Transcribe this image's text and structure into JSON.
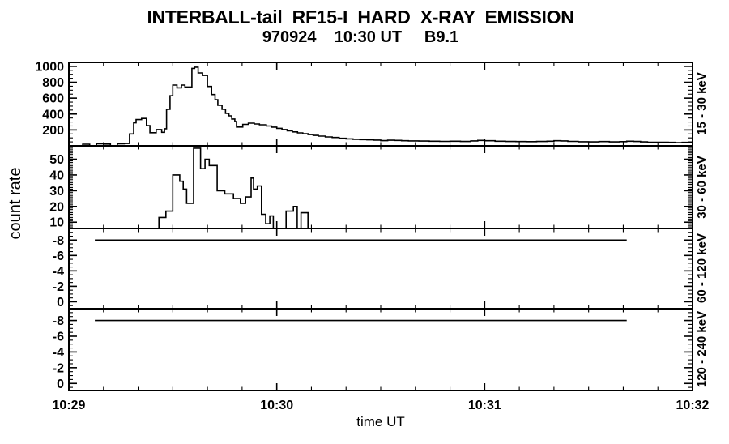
{
  "page": {
    "background": "#ffffff",
    "foreground": "#000000"
  },
  "header": {
    "title": "INTERBALL-tail  RF15-I  HARD  X-RAY  EMISSION",
    "subtitle": "970924    10:30 UT     B9.1"
  },
  "axes": {
    "x_title": "time UT",
    "y_title": "count rate"
  },
  "chart_data": {
    "type": "line",
    "subtype": "step-histogram, 4 vertically stacked panels sharing time axis",
    "title": "INTERBALL-tail  RF15-I  HARD  X-RAY  EMISSION",
    "subtitle": "970924    10:30 UT     B9.1",
    "xlabel": "time UT",
    "ylabel": "count rate",
    "grid": false,
    "x_axis": {
      "range_seconds": [
        0,
        180
      ],
      "major_tick_seconds": [
        0,
        60,
        120,
        180
      ],
      "major_tick_labels": [
        "10:29",
        "10:30",
        "10:31",
        "10:32"
      ],
      "minor_tick_step_seconds": 10
    },
    "panels": [
      {
        "band_label": "15 - 30 keV",
        "y_ticks": [
          200,
          400,
          600,
          800,
          1000
        ],
        "y_range_bottom_top": [
          0,
          1050
        ],
        "y_minor_step": 50,
        "end_t": 180,
        "steps_t_v": [
          [
            0,
            0
          ],
          [
            4,
            20
          ],
          [
            6,
            0
          ],
          [
            8,
            25
          ],
          [
            10,
            22
          ],
          [
            12,
            0
          ],
          [
            14,
            25
          ],
          [
            16,
            30
          ],
          [
            17.5,
            150
          ],
          [
            18.7,
            290
          ],
          [
            19.4,
            330
          ],
          [
            21,
            345
          ],
          [
            22.4,
            255
          ],
          [
            23.4,
            165
          ],
          [
            25.2,
            205
          ],
          [
            26.8,
            170
          ],
          [
            27.6,
            215
          ],
          [
            28.2,
            460
          ],
          [
            29.2,
            630
          ],
          [
            30,
            765
          ],
          [
            31.2,
            730
          ],
          [
            32.5,
            765
          ],
          [
            33.5,
            740
          ],
          [
            35.5,
            975
          ],
          [
            36.3,
            990
          ],
          [
            37.3,
            917
          ],
          [
            38.6,
            886
          ],
          [
            40,
            747
          ],
          [
            41.2,
            645
          ],
          [
            42.2,
            580
          ],
          [
            43,
            510
          ],
          [
            44.2,
            459
          ],
          [
            45.2,
            408
          ],
          [
            46.2,
            377
          ],
          [
            47,
            337
          ],
          [
            47.9,
            306
          ],
          [
            48.4,
            237
          ],
          [
            50.2,
            270
          ],
          [
            51.8,
            285
          ],
          [
            53.5,
            275
          ],
          [
            55,
            265
          ],
          [
            57,
            250
          ],
          [
            58.5,
            235
          ],
          [
            60,
            220
          ],
          [
            61.5,
            205
          ],
          [
            63,
            190
          ],
          [
            64.5,
            175
          ],
          [
            66,
            163
          ],
          [
            67.5,
            152
          ],
          [
            69,
            142
          ],
          [
            70.5,
            132
          ],
          [
            72,
            122
          ],
          [
            74,
            112
          ],
          [
            76,
            105
          ],
          [
            78,
            95
          ],
          [
            80,
            88
          ],
          [
            82,
            82
          ],
          [
            84,
            78
          ],
          [
            86,
            75
          ],
          [
            88,
            72
          ],
          [
            90,
            65
          ],
          [
            92,
            70
          ],
          [
            94,
            68
          ],
          [
            96,
            64
          ],
          [
            98,
            62
          ],
          [
            101,
            60
          ],
          [
            104,
            58
          ],
          [
            107,
            56
          ],
          [
            110,
            58
          ],
          [
            113,
            55
          ],
          [
            116,
            62
          ],
          [
            118,
            68
          ],
          [
            120,
            64
          ],
          [
            123,
            58
          ],
          [
            126,
            55
          ],
          [
            129,
            54
          ],
          [
            132,
            53
          ],
          [
            135,
            55
          ],
          [
            138,
            58
          ],
          [
            140,
            64
          ],
          [
            142,
            62
          ],
          [
            144,
            56
          ],
          [
            147,
            52
          ],
          [
            150,
            50
          ],
          [
            153,
            54
          ],
          [
            156,
            50
          ],
          [
            159,
            53
          ],
          [
            161,
            58
          ],
          [
            163,
            55
          ],
          [
            165,
            50
          ],
          [
            167,
            46
          ],
          [
            170,
            45
          ],
          [
            173,
            44
          ],
          [
            175,
            40
          ],
          [
            177,
            44
          ]
        ]
      },
      {
        "band_label": "30 - 60 keV",
        "y_ticks": [
          10,
          20,
          30,
          40,
          50
        ],
        "y_range_bottom_top": [
          6,
          58.5
        ],
        "y_minor_step": 1,
        "end_t": 180,
        "steps_t_v": [
          [
            0,
            0
          ],
          [
            26,
            13
          ],
          [
            28,
            17
          ],
          [
            30,
            40
          ],
          [
            32,
            36
          ],
          [
            33,
            31
          ],
          [
            34,
            22
          ],
          [
            36,
            57
          ],
          [
            38,
            44
          ],
          [
            39.3,
            50
          ],
          [
            40.5,
            46
          ],
          [
            42.8,
            30
          ],
          [
            45,
            28
          ],
          [
            47.5,
            25
          ],
          [
            49.5,
            22
          ],
          [
            51,
            26
          ],
          [
            52.6,
            38
          ],
          [
            53.3,
            31
          ],
          [
            54.4,
            33
          ],
          [
            55.6,
            15
          ],
          [
            56.8,
            9
          ],
          [
            58,
            14
          ],
          [
            59,
            3
          ],
          [
            62.7,
            17
          ],
          [
            64.8,
            20
          ],
          [
            65.9,
            3
          ],
          [
            67,
            16
          ],
          [
            69,
            0
          ]
        ]
      },
      {
        "band_label": "60 - 120 keV",
        "y_ticks": [
          0,
          -2,
          -4,
          -6,
          -8
        ],
        "y_range_bottom_top": [
          0.9,
          -9.5
        ],
        "y_minor_step": 0.5,
        "end_t": 161,
        "steps_t_v": [
          [
            7.5,
            -8
          ]
        ]
      },
      {
        "band_label": "120 - 240 keV",
        "y_ticks": [
          0,
          -2,
          -4,
          -6,
          -8
        ],
        "y_range_bottom_top": [
          0.9,
          -9.5
        ],
        "y_minor_step": 0.5,
        "end_t": 161,
        "steps_t_v": [
          [
            7.5,
            -8
          ]
        ]
      }
    ]
  }
}
